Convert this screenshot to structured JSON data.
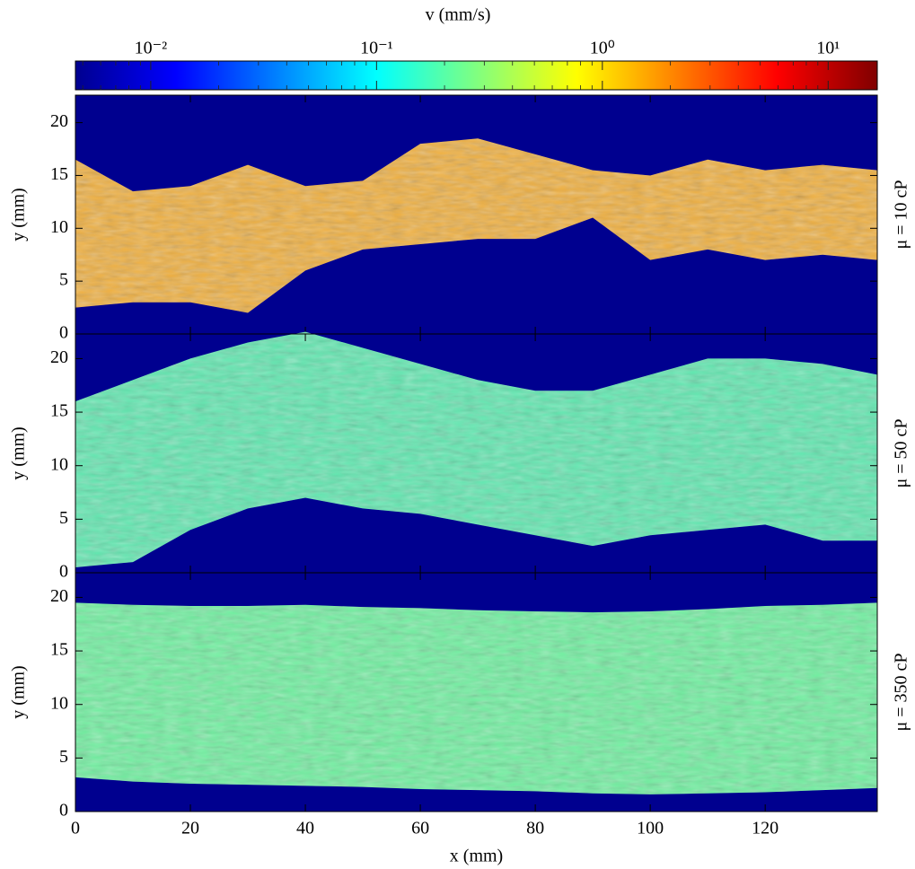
{
  "chart_data": [
    {
      "type": "colorbar",
      "title": "v (mm/s)",
      "log_scale": true,
      "xlim": [
        0.00464,
        16.5
      ],
      "xticks": [
        {
          "value": 0.01,
          "label": "10⁻²"
        },
        {
          "value": 0.1,
          "label": "10⁻¹"
        },
        {
          "value": 1,
          "label": "10⁰"
        },
        {
          "value": 10,
          "label": "10¹"
        }
      ],
      "minor_ticks": [
        0.005,
        0.006,
        0.007,
        0.008,
        0.009,
        0.02,
        0.03,
        0.04,
        0.05,
        0.06,
        0.07,
        0.08,
        0.09,
        0.2,
        0.3,
        0.4,
        0.5,
        0.6,
        0.7,
        0.8,
        0.9,
        2,
        3,
        4,
        5,
        6,
        7,
        8,
        9
      ],
      "colors": [
        "#00008f",
        "#0000ff",
        "#0080ff",
        "#00ffff",
        "#80ff80",
        "#ffff00",
        "#ff8000",
        "#ff0000",
        "#800000"
      ]
    },
    {
      "type": "band",
      "label": "μ = 10 cP",
      "ylabel": "y (mm)",
      "color": "#f0b040",
      "background": "#00008f",
      "x": [
        0,
        10,
        20,
        30,
        40,
        50,
        60,
        70,
        80,
        90,
        100,
        110,
        120,
        130,
        139.5
      ],
      "upper": [
        16.5,
        13.5,
        14,
        16,
        14,
        14.5,
        18,
        18.5,
        17,
        15.5,
        15,
        16.5,
        15.5,
        16,
        15.5
      ],
      "lower": [
        2.5,
        3,
        3,
        2,
        6,
        8,
        8.5,
        9,
        9,
        11,
        7,
        8,
        7,
        7.5,
        7
      ],
      "xlim": [
        0,
        139.5
      ],
      "ylim": [
        0,
        22.6
      ],
      "yticks": [
        0,
        5,
        10,
        15,
        20
      ],
      "xticks": [
        0,
        20,
        40,
        60,
        80,
        100,
        120
      ]
    },
    {
      "type": "band",
      "label": "μ = 50 cP",
      "ylabel": "y (mm)",
      "color": "#60e8b0",
      "background": "#00008f",
      "x": [
        0,
        10,
        20,
        30,
        40,
        50,
        60,
        70,
        80,
        90,
        100,
        110,
        120,
        130,
        139.5
      ],
      "upper": [
        16,
        18,
        20,
        21.5,
        22.5,
        21,
        19.5,
        18,
        17,
        17,
        18.5,
        20,
        20,
        19.5,
        18.5
      ],
      "lower": [
        0.5,
        1,
        4,
        6,
        7,
        6,
        5.5,
        4.5,
        3.5,
        2.5,
        3.5,
        4,
        4.5,
        3,
        3
      ],
      "xlim": [
        0,
        139.5
      ],
      "ylim": [
        0,
        22.3
      ],
      "yticks": [
        0,
        5,
        10,
        15,
        20
      ],
      "xticks": [
        0,
        20,
        40,
        60,
        80,
        100,
        120
      ]
    },
    {
      "type": "band",
      "label": "μ = 350 cP",
      "ylabel": "y (mm)",
      "xlabel": "x (mm)",
      "color": "#70f0a0",
      "background": "#00008f",
      "x": [
        0,
        10,
        20,
        30,
        40,
        50,
        60,
        70,
        80,
        90,
        100,
        110,
        120,
        130,
        139.5
      ],
      "upper": [
        19.5,
        19.3,
        19.2,
        19.2,
        19.3,
        19.1,
        19.0,
        18.8,
        18.7,
        18.6,
        18.7,
        18.9,
        19.2,
        19.3,
        19.5
      ],
      "lower": [
        3.2,
        2.8,
        2.6,
        2.5,
        2.4,
        2.3,
        2.1,
        2.0,
        1.9,
        1.7,
        1.6,
        1.7,
        1.8,
        2.0,
        2.2
      ],
      "xlim": [
        0,
        139.5
      ],
      "ylim": [
        0,
        22.3
      ],
      "yticks": [
        0,
        5,
        10,
        15,
        20
      ],
      "xticks": [
        0,
        20,
        40,
        60,
        80,
        100,
        120
      ],
      "show_xtick_labels": true
    }
  ]
}
